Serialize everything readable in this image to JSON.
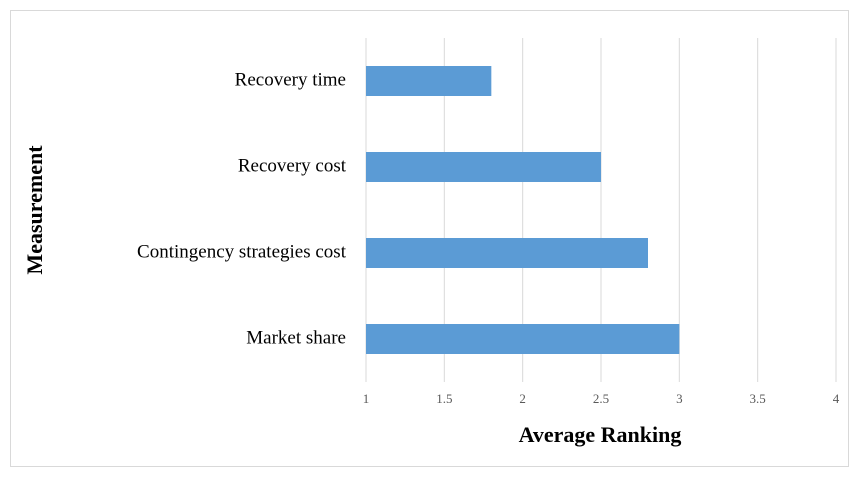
{
  "chart_data": {
    "type": "bar",
    "orientation": "horizontal",
    "categories": [
      "Recovery time",
      "Recovery cost",
      "Contingency strategies cost",
      "Market share"
    ],
    "values": [
      1.8,
      2.5,
      2.8,
      3.0
    ],
    "color": "#5b9bd5",
    "xlabel": "Average Ranking",
    "ylabel": "Measurement",
    "xlim": [
      1,
      4
    ],
    "xticks": [
      1,
      1.5,
      2,
      2.5,
      3,
      3.5,
      4
    ],
    "grid": true
  }
}
